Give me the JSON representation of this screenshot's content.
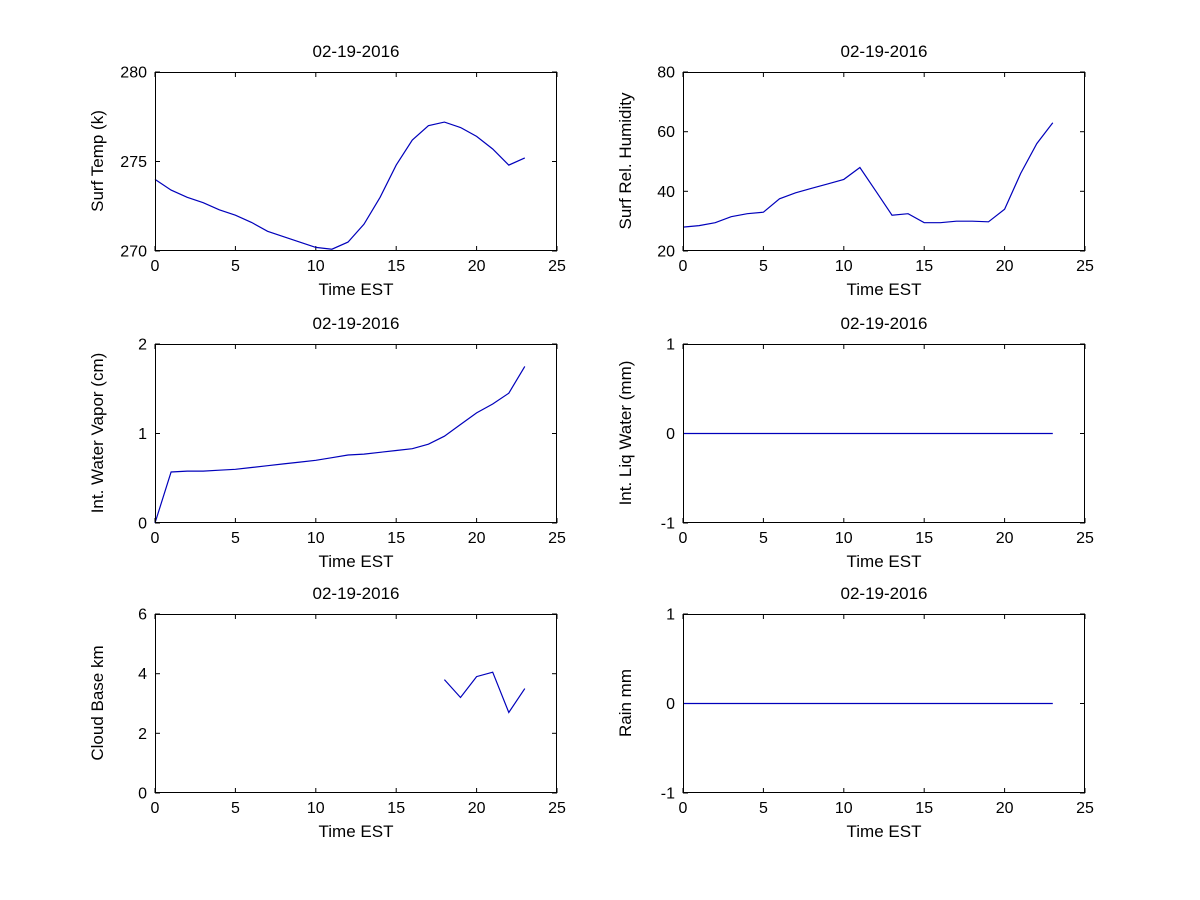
{
  "figure": {
    "background": "#ffffff",
    "line_color": "#0000bb",
    "axis_color": "#000000"
  },
  "chart_data": [
    {
      "type": "line",
      "title": "02-19-2016",
      "xlabel": "Time EST",
      "ylabel": "Surf Temp (k)",
      "xlim": [
        0,
        25
      ],
      "ylim": [
        270,
        280
      ],
      "xticks": [
        0,
        5,
        10,
        15,
        20,
        25
      ],
      "yticks": [
        270,
        275,
        280
      ],
      "x": [
        0,
        1,
        2,
        3,
        4,
        5,
        6,
        7,
        8,
        9,
        10,
        11,
        12,
        13,
        14,
        15,
        16,
        17,
        18,
        19,
        20,
        21,
        22,
        23
      ],
      "values": [
        274.0,
        273.4,
        273.0,
        272.7,
        272.3,
        272.0,
        271.6,
        271.1,
        270.8,
        270.5,
        270.2,
        270.1,
        270.5,
        271.5,
        273.0,
        274.8,
        276.2,
        277.0,
        277.2,
        276.9,
        276.4,
        275.7,
        274.8,
        275.2
      ]
    },
    {
      "type": "line",
      "title": "02-19-2016",
      "xlabel": "Time EST",
      "ylabel": "Surf Rel. Humidity",
      "xlim": [
        0,
        25
      ],
      "ylim": [
        20,
        80
      ],
      "xticks": [
        0,
        5,
        10,
        15,
        20,
        25
      ],
      "yticks": [
        20,
        40,
        60,
        80
      ],
      "x": [
        0,
        1,
        2,
        3,
        4,
        5,
        6,
        7,
        8,
        9,
        10,
        11,
        12,
        13,
        14,
        15,
        16,
        17,
        18,
        19,
        20,
        21,
        22,
        23
      ],
      "values": [
        28,
        28.5,
        29.5,
        31.5,
        32.5,
        33,
        37.5,
        39.5,
        41,
        42.5,
        44,
        48,
        40,
        32,
        32.5,
        29.5,
        29.5,
        30,
        30,
        29.8,
        34,
        46,
        56,
        63
      ]
    },
    {
      "type": "line",
      "title": "02-19-2016",
      "xlabel": "Time EST",
      "ylabel": "Int. Water Vapor (cm)",
      "xlim": [
        0,
        25
      ],
      "ylim": [
        0,
        2
      ],
      "xticks": [
        0,
        5,
        10,
        15,
        20,
        25
      ],
      "yticks": [
        0,
        1,
        2
      ],
      "x": [
        0,
        1,
        2,
        3,
        4,
        5,
        6,
        7,
        8,
        9,
        10,
        11,
        12,
        13,
        14,
        15,
        16,
        17,
        18,
        19,
        20,
        21,
        22,
        23
      ],
      "values": [
        0,
        0.57,
        0.58,
        0.58,
        0.59,
        0.6,
        0.62,
        0.64,
        0.66,
        0.68,
        0.7,
        0.73,
        0.76,
        0.77,
        0.79,
        0.81,
        0.83,
        0.88,
        0.97,
        1.1,
        1.23,
        1.33,
        1.45,
        1.75
      ]
    },
    {
      "type": "line",
      "title": "02-19-2016",
      "xlabel": "Time EST",
      "ylabel": "Int. Liq Water (mm)",
      "xlim": [
        0,
        25
      ],
      "ylim": [
        -1,
        1
      ],
      "xticks": [
        0,
        5,
        10,
        15,
        20,
        25
      ],
      "yticks": [
        -1,
        0,
        1
      ],
      "x": [
        0,
        1,
        2,
        3,
        4,
        5,
        6,
        7,
        8,
        9,
        10,
        11,
        12,
        13,
        14,
        15,
        16,
        17,
        18,
        19,
        20,
        21,
        22,
        23
      ],
      "values": [
        0,
        0,
        0,
        0,
        0,
        0,
        0,
        0,
        0,
        0,
        0,
        0,
        0,
        0,
        0,
        0,
        0,
        0,
        0,
        0,
        0,
        0,
        0,
        0
      ]
    },
    {
      "type": "line",
      "title": "02-19-2016",
      "xlabel": "Time EST",
      "ylabel": "Cloud Base km",
      "xlim": [
        0,
        25
      ],
      "ylim": [
        0,
        6
      ],
      "xticks": [
        0,
        5,
        10,
        15,
        20,
        25
      ],
      "yticks": [
        0,
        2,
        4,
        6
      ],
      "x": [
        18,
        19,
        20,
        21,
        22,
        23
      ],
      "values": [
        3.8,
        3.2,
        3.9,
        4.05,
        2.7,
        3.5
      ]
    },
    {
      "type": "line",
      "title": "02-19-2016",
      "xlabel": "Time EST",
      "ylabel": "Rain mm",
      "xlim": [
        0,
        25
      ],
      "ylim": [
        -1,
        1
      ],
      "xticks": [
        0,
        5,
        10,
        15,
        20,
        25
      ],
      "yticks": [
        -1,
        0,
        1
      ],
      "x": [
        0,
        1,
        2,
        3,
        4,
        5,
        6,
        7,
        8,
        9,
        10,
        11,
        12,
        13,
        14,
        15,
        16,
        17,
        18,
        19,
        20,
        21,
        22,
        23
      ],
      "values": [
        0,
        0,
        0,
        0,
        0,
        0,
        0,
        0,
        0,
        0,
        0,
        0,
        0,
        0,
        0,
        0,
        0,
        0,
        0,
        0,
        0,
        0,
        0,
        0
      ]
    }
  ]
}
